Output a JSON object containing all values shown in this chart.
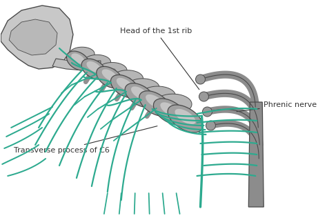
{
  "background_color": "#ffffff",
  "bone_color": "#8c8c8c",
  "bone_light": "#b0b0b0",
  "bone_edge_color": "#4a4a4a",
  "nerve_color": "#2daa8f",
  "nerve_lw": 1.6,
  "annotation_color": "#333333",
  "annotation_fontsize": 8.0,
  "labels": {
    "head_of_rib": "Head of the 1st rib",
    "transverse_c6": "Transverse process of C6",
    "phrenic": "Phrenic nerve"
  }
}
